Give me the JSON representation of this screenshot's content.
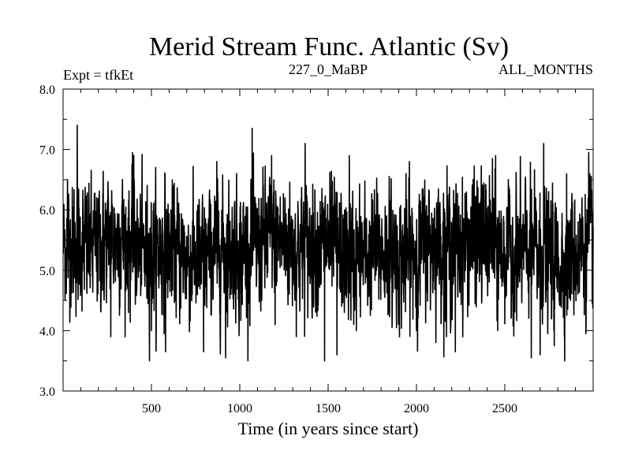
{
  "chart_data": {
    "type": "line",
    "title": "Merid Stream Func. Atlantic (Sv)",
    "subtitle_left": "Expt = tfkEt",
    "subtitle_center": "227_0_MaBP",
    "subtitle_right": "ALL_MONTHS",
    "xlabel": "Time (in years since start)",
    "ylabel": "",
    "xlim": [
      0,
      3000
    ],
    "ylim": [
      3.0,
      8.0
    ],
    "x_ticks": [
      500,
      1000,
      1500,
      2000,
      2500
    ],
    "x_tick_labels": [
      "500",
      "1000",
      "1500",
      "2000",
      "2500"
    ],
    "y_ticks": [
      3.0,
      4.0,
      5.0,
      6.0,
      7.0,
      8.0
    ],
    "y_tick_labels": [
      "3.0",
      "4.0",
      "5.0",
      "6.0",
      "7.0",
      "8.0"
    ],
    "grid": false,
    "legend": "none",
    "line_color": "#000000",
    "series": [
      {
        "x_start": 1,
        "x_step": 1,
        "n_points": 3000,
        "mean": 5.35,
        "std": 0.52,
        "min": 3.5,
        "max": 7.4,
        "x_features": [
          25,
          80,
          270,
          400,
          500,
          580,
          795,
          870,
          920,
          1070,
          1180,
          1200,
          1370,
          1480,
          1550,
          1620,
          1660,
          1960,
          2000,
          2170,
          2220,
          2430,
          2460,
          2650,
          2700,
          2720,
          2780,
          2850,
          2975
        ],
        "y_features": [
          6.5,
          7.4,
          3.9,
          6.9,
          4.0,
          3.65,
          3.65,
          6.8,
          3.55,
          7.35,
          6.9,
          4.1,
          7.1,
          3.5,
          3.6,
          6.9,
          4.0,
          6.8,
          4.0,
          3.9,
          3.65,
          6.85,
          4.0,
          3.55,
          3.6,
          7.1,
          3.75,
          6.6,
          6.95
        ]
      }
    ]
  }
}
